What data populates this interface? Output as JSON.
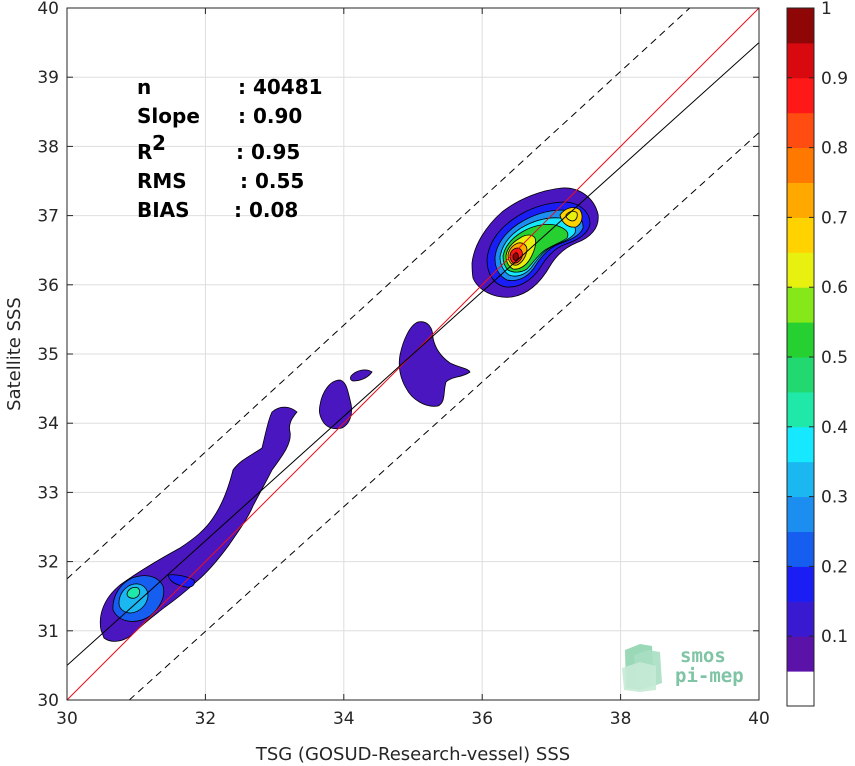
{
  "chart_data": {
    "type": "heatmap",
    "title": "",
    "xlabel": "TSG (GOSUD-Research-vessel) SSS",
    "ylabel": "Satellite SSS",
    "xlim": [
      30,
      40
    ],
    "ylim": [
      30,
      40
    ],
    "x_ticks": [
      30,
      32,
      34,
      36,
      38,
      40
    ],
    "y_ticks": [
      30,
      31,
      32,
      33,
      34,
      35,
      36,
      37,
      38,
      39,
      40
    ],
    "grid": true,
    "stats": [
      {
        "label": "n",
        "value": ": 40481"
      },
      {
        "label": "Slope",
        "value": ": 0.90"
      },
      {
        "label": "R",
        "sup": "2",
        "value": ": 0.95"
      },
      {
        "label": "RMS",
        "value": ": 0.55"
      },
      {
        "label": "BIAS",
        "value": ": 0.08"
      }
    ],
    "lines": [
      {
        "kind": "one-to-one",
        "color": "#e8101e",
        "x": [
          30,
          40
        ],
        "y": [
          30,
          40
        ]
      },
      {
        "kind": "regression",
        "color": "#000000",
        "slope": 0.9,
        "x": [
          30,
          40
        ],
        "y": [
          30.5,
          39.5
        ]
      },
      {
        "kind": "upper-bound",
        "color": "#000000",
        "dashed": true,
        "x": [
          30,
          39.0
        ],
        "y": [
          31.75,
          40
        ]
      },
      {
        "kind": "lower-bound",
        "color": "#000000",
        "dashed": true,
        "x": [
          30.9,
          40
        ],
        "y": [
          30,
          38.2
        ]
      }
    ],
    "density_clusters": [
      {
        "x": 31.0,
        "y": 31.5,
        "peak": 0.42
      },
      {
        "x": 32.0,
        "y": 32.6,
        "peak": 0.08
      },
      {
        "x": 33.0,
        "y": 33.8,
        "peak": 0.08
      },
      {
        "x": 34.0,
        "y": 34.3,
        "peak": 0.08
      },
      {
        "x": 35.0,
        "y": 34.9,
        "peak": 0.08
      },
      {
        "x": 36.5,
        "y": 36.4,
        "peak": 1.0
      },
      {
        "x": 37.3,
        "y": 36.9,
        "peak": 0.7
      }
    ],
    "colorbar": {
      "ticks": [
        0.1,
        0.2,
        0.3,
        0.4,
        0.5,
        0.6,
        0.7,
        0.8,
        0.9,
        1
      ],
      "tick_labels": [
        "0.1",
        "0.2",
        "0.3",
        "0.4",
        "0.5",
        "0.6",
        "0.7",
        "0.8",
        "0.9",
        "1"
      ],
      "range": [
        0,
        1
      ],
      "colors": [
        "#ffffff",
        "#5a12a8",
        "#3a1ad0",
        "#1a1ef5",
        "#155ef0",
        "#1c8ef0",
        "#1ab7f0",
        "#16e8ff",
        "#1fe8a8",
        "#22d870",
        "#26d030",
        "#86e818",
        "#e8f010",
        "#ffd200",
        "#ffa800",
        "#ff7800",
        "#ff4c10",
        "#ff1818",
        "#d80a10",
        "#8e0606"
      ]
    }
  },
  "logo": {
    "line1": "smos",
    "line2": "pi-mep"
  }
}
